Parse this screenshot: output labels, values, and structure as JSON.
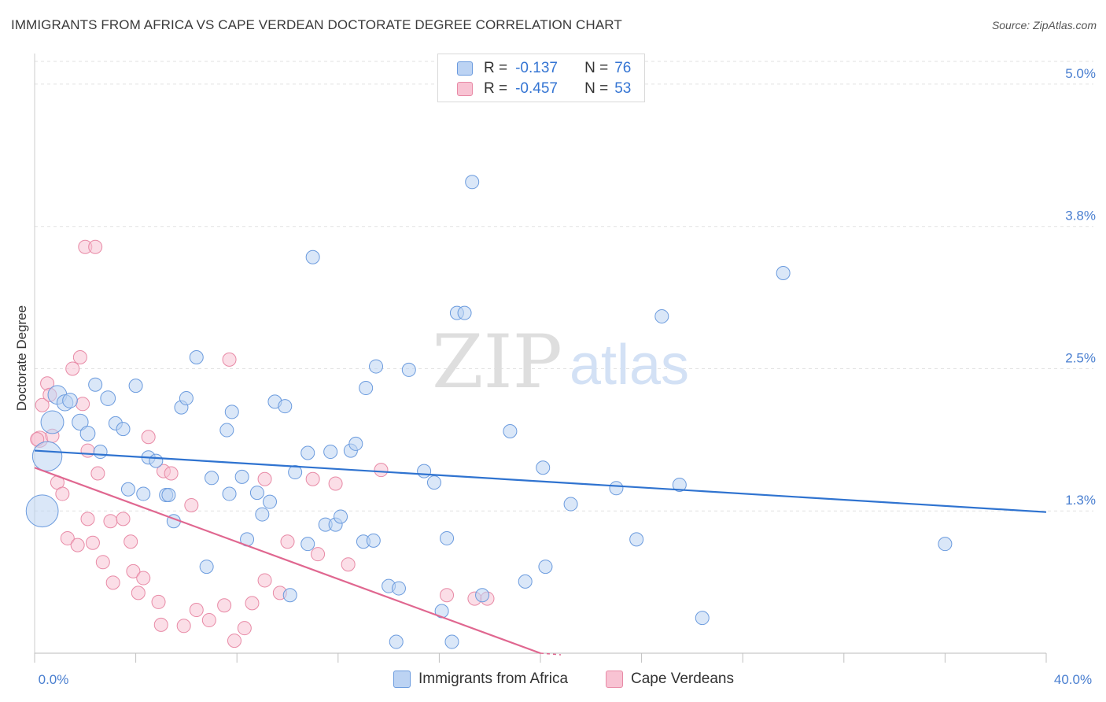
{
  "title": "IMMIGRANTS FROM AFRICA VS CAPE VERDEAN DOCTORATE DEGREE CORRELATION CHART",
  "source": "Source: ZipAtlas.com",
  "watermark": {
    "zip": "ZIP",
    "atlas": "atlas"
  },
  "colors": {
    "blue_fill": "#bcd3f3",
    "blue_stroke": "#6b9bde",
    "blue_line": "#2f73d0",
    "pink_fill": "#f8c3d3",
    "pink_stroke": "#e88aa6",
    "pink_line": "#e06790",
    "tick_text": "#4a7fd0",
    "grid": "#e2e2e2"
  },
  "legend_top": {
    "rows": [
      {
        "series": "blue",
        "r_label": "R =",
        "r_value": "-0.137",
        "n_label": "N =",
        "n_value": "76"
      },
      {
        "series": "pink",
        "r_label": "R =",
        "r_value": "-0.457",
        "n_label": "N =",
        "n_value": "53"
      }
    ]
  },
  "legend_bottom": [
    {
      "series": "blue",
      "label": "Immigrants from Africa"
    },
    {
      "series": "pink",
      "label": "Cape Verdeans"
    }
  ],
  "chart_data": {
    "type": "scatter",
    "title": "IMMIGRANTS FROM AFRICA VS CAPE VERDEAN DOCTORATE DEGREE CORRELATION CHART",
    "xlabel": "",
    "ylabel": "Doctorate Degree",
    "xlim": [
      0,
      40
    ],
    "ylim": [
      0,
      5.2
    ],
    "y_ticks": [
      {
        "value": 1.25,
        "label": "1.3%"
      },
      {
        "value": 2.5,
        "label": "2.5%"
      },
      {
        "value": 3.75,
        "label": "3.8%"
      },
      {
        "value": 5.0,
        "label": "5.0%"
      }
    ],
    "x_tick_labels": [
      {
        "value": 0,
        "label": "0.0%"
      },
      {
        "value": 40,
        "label": "40.0%"
      }
    ],
    "x_minor_ticks": [
      0,
      4,
      8,
      12,
      16,
      20,
      24,
      28,
      32,
      36,
      40
    ],
    "grid": true,
    "series": [
      {
        "name": "Immigrants from Africa",
        "color": "blue",
        "trend": {
          "x": [
            0,
            40
          ],
          "y": [
            1.78,
            1.24
          ]
        },
        "points": [
          [
            0.3,
            1.25,
            2.4
          ],
          [
            0.5,
            1.73,
            2.2
          ],
          [
            0.7,
            2.03,
            1.7
          ],
          [
            0.9,
            2.27,
            1.4
          ],
          [
            1.2,
            2.2,
            1.2
          ],
          [
            1.4,
            2.22,
            1.1
          ],
          [
            1.8,
            2.03,
            1.2
          ],
          [
            2.1,
            1.93,
            1.1
          ],
          [
            2.4,
            2.36,
            1.0
          ],
          [
            2.6,
            1.77,
            1.0
          ],
          [
            2.9,
            2.24,
            1.1
          ],
          [
            3.2,
            2.02,
            1.0
          ],
          [
            3.5,
            1.97,
            1.0
          ],
          [
            3.7,
            1.44,
            1.0
          ],
          [
            4.0,
            2.35,
            1.0
          ],
          [
            4.3,
            1.4,
            1.0
          ],
          [
            4.5,
            1.72,
            1.0
          ],
          [
            4.8,
            1.69,
            1.0
          ],
          [
            5.2,
            1.39,
            1.0
          ],
          [
            5.3,
            1.39,
            1.0
          ],
          [
            5.5,
            1.16,
            1.0
          ],
          [
            5.8,
            2.16,
            1.0
          ],
          [
            6.0,
            2.24,
            1.0
          ],
          [
            6.4,
            2.6,
            1.0
          ],
          [
            6.8,
            0.76,
            1.0
          ],
          [
            7.0,
            1.54,
            1.0
          ],
          [
            7.6,
            1.96,
            1.0
          ],
          [
            7.7,
            1.4,
            1.0
          ],
          [
            7.8,
            2.12,
            1.0
          ],
          [
            8.2,
            1.55,
            1.0
          ],
          [
            8.4,
            1.0,
            1.0
          ],
          [
            8.8,
            1.41,
            1.0
          ],
          [
            9.0,
            1.22,
            1.0
          ],
          [
            9.3,
            1.33,
            1.0
          ],
          [
            9.5,
            2.21,
            1.0
          ],
          [
            9.9,
            2.17,
            1.0
          ],
          [
            10.1,
            0.51,
            1.0
          ],
          [
            10.3,
            1.59,
            1.0
          ],
          [
            10.8,
            0.96,
            1.0
          ],
          [
            11.0,
            3.48,
            1.0
          ],
          [
            10.8,
            1.76,
            1.0
          ],
          [
            11.5,
            1.13,
            1.0
          ],
          [
            11.7,
            1.77,
            1.0
          ],
          [
            11.9,
            1.13,
            1.0
          ],
          [
            12.1,
            1.2,
            1.0
          ],
          [
            12.5,
            1.78,
            1.0
          ],
          [
            12.7,
            1.84,
            1.0
          ],
          [
            13.0,
            0.98,
            1.0
          ],
          [
            13.1,
            2.33,
            1.0
          ],
          [
            13.5,
            2.52,
            1.0
          ],
          [
            13.4,
            0.99,
            1.0
          ],
          [
            14.0,
            0.59,
            1.0
          ],
          [
            14.4,
            0.57,
            1.0
          ],
          [
            14.3,
            0.1,
            1.0
          ],
          [
            14.8,
            2.49,
            1.0
          ],
          [
            15.4,
            1.6,
            1.0
          ],
          [
            15.8,
            1.5,
            1.0
          ],
          [
            16.1,
            0.37,
            1.0
          ],
          [
            16.3,
            1.01,
            1.0
          ],
          [
            16.5,
            0.1,
            1.0
          ],
          [
            16.7,
            2.99,
            1.0
          ],
          [
            17.0,
            2.99,
            1.0
          ],
          [
            17.3,
            4.14,
            1.0
          ],
          [
            17.7,
            0.51,
            1.0
          ],
          [
            18.8,
            1.95,
            1.0
          ],
          [
            19.4,
            0.63,
            1.0
          ],
          [
            20.1,
            1.63,
            1.0
          ],
          [
            20.2,
            0.76,
            1.0
          ],
          [
            21.2,
            1.31,
            1.0
          ],
          [
            23.0,
            1.45,
            1.0
          ],
          [
            23.8,
            1.0,
            1.0
          ],
          [
            24.8,
            2.96,
            1.0
          ],
          [
            25.5,
            1.48,
            1.0
          ],
          [
            26.4,
            0.31,
            1.0
          ],
          [
            29.6,
            3.34,
            1.0
          ],
          [
            36.0,
            0.96,
            1.0
          ]
        ]
      },
      {
        "name": "Cape Verdeans",
        "color": "pink",
        "trend": {
          "x": [
            0,
            20
          ],
          "y": [
            1.63,
            0.0
          ]
        },
        "points": [
          [
            0.2,
            1.88,
            1.2
          ],
          [
            0.3,
            2.18,
            1.0
          ],
          [
            0.5,
            2.37,
            1.0
          ],
          [
            0.6,
            2.27,
            1.0
          ],
          [
            0.7,
            1.91,
            1.0
          ],
          [
            0.9,
            1.5,
            1.0
          ],
          [
            1.1,
            1.4,
            1.0
          ],
          [
            1.3,
            1.01,
            1.0
          ],
          [
            1.5,
            2.5,
            1.0
          ],
          [
            1.7,
            0.95,
            1.0
          ],
          [
            1.8,
            2.6,
            1.0
          ],
          [
            1.9,
            2.19,
            1.0
          ],
          [
            2.1,
            1.78,
            1.0
          ],
          [
            2.0,
            3.57,
            1.0
          ],
          [
            2.1,
            1.18,
            1.0
          ],
          [
            2.3,
            0.97,
            1.0
          ],
          [
            2.4,
            3.57,
            1.0
          ],
          [
            2.5,
            1.58,
            1.0
          ],
          [
            2.7,
            0.8,
            1.0
          ],
          [
            3.0,
            1.16,
            1.0
          ],
          [
            3.1,
            0.62,
            1.0
          ],
          [
            3.5,
            1.18,
            1.0
          ],
          [
            3.8,
            0.98,
            1.0
          ],
          [
            3.9,
            0.72,
            1.0
          ],
          [
            4.1,
            0.53,
            1.0
          ],
          [
            4.3,
            0.66,
            1.0
          ],
          [
            4.5,
            1.9,
            1.0
          ],
          [
            4.9,
            0.45,
            1.0
          ],
          [
            5.0,
            0.25,
            1.0
          ],
          [
            5.1,
            1.6,
            1.0
          ],
          [
            5.4,
            1.58,
            1.0
          ],
          [
            5.9,
            0.24,
            1.0
          ],
          [
            6.2,
            1.3,
            1.0
          ],
          [
            6.4,
            0.38,
            1.0
          ],
          [
            6.9,
            0.29,
            1.0
          ],
          [
            7.5,
            0.42,
            1.0
          ],
          [
            7.7,
            2.58,
            1.0
          ],
          [
            7.9,
            0.11,
            1.0
          ],
          [
            8.3,
            0.22,
            1.0
          ],
          [
            8.6,
            0.44,
            1.0
          ],
          [
            9.1,
            0.64,
            1.0
          ],
          [
            9.1,
            1.53,
            1.0
          ],
          [
            9.7,
            0.53,
            1.0
          ],
          [
            10.0,
            0.98,
            1.0
          ],
          [
            11.0,
            1.53,
            1.0
          ],
          [
            11.2,
            0.87,
            1.0
          ],
          [
            11.9,
            1.49,
            1.0
          ],
          [
            12.4,
            0.78,
            1.0
          ],
          [
            13.7,
            1.61,
            1.0
          ],
          [
            16.3,
            0.51,
            1.0
          ],
          [
            17.4,
            0.48,
            1.0
          ],
          [
            17.9,
            0.48,
            1.0
          ],
          [
            0.1,
            1.88,
            1.0
          ]
        ]
      }
    ]
  }
}
